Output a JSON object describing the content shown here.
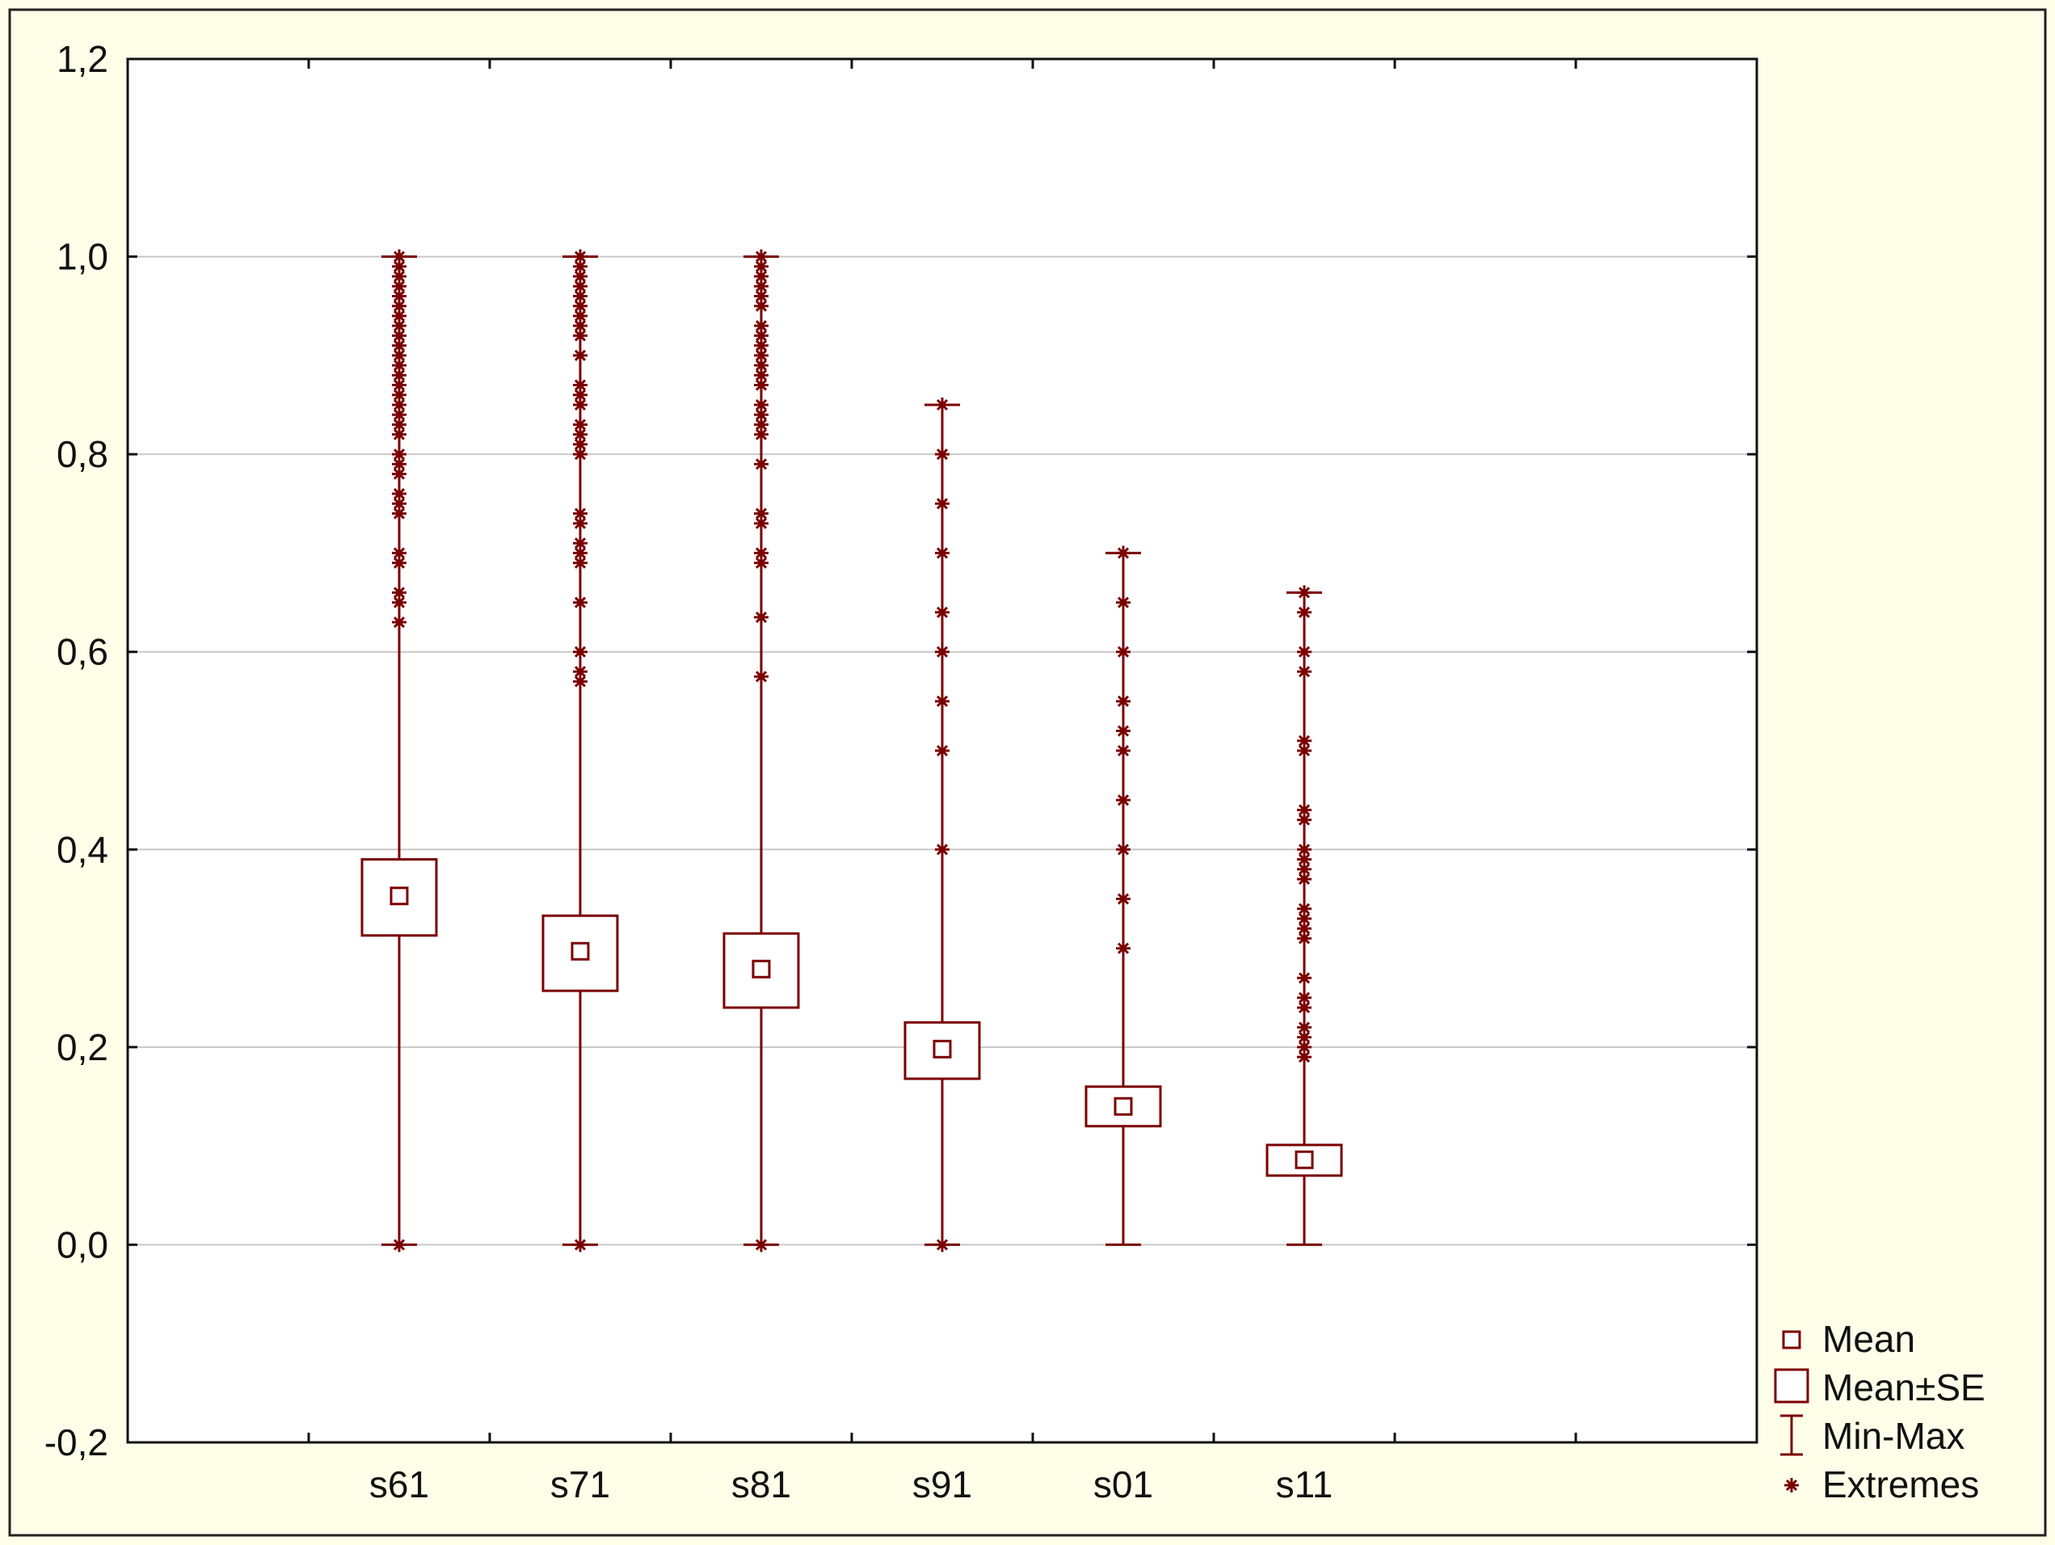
{
  "chart_data": {
    "type": "box",
    "title": "",
    "xlabel": "",
    "ylabel": "",
    "ylim": [
      -0.2,
      1.2
    ],
    "y_ticks": [
      "-0,2",
      "0,0",
      "0,2",
      "0,4",
      "0,6",
      "0,8",
      "1,0",
      "1,2"
    ],
    "y_tick_values": [
      -0.2,
      0.0,
      0.2,
      0.4,
      0.6,
      0.8,
      1.0,
      1.2
    ],
    "grid": "horizontal",
    "legend_position": "right-bottom",
    "legend": {
      "mean": "Mean",
      "mean_se": "Mean±SE",
      "min_max": "Min-Max",
      "extremes": "Extremes"
    },
    "colors": {
      "series": "#7b0000",
      "grid": "#c8c8c8",
      "plot_background": "#ffffff",
      "page_background": "#fefee9"
    },
    "categories": [
      "s61",
      "s71",
      "s81",
      "s91",
      "s01",
      "s11"
    ],
    "series": [
      {
        "category": "s61",
        "mean": 0.353,
        "se_low": 0.313,
        "se_high": 0.39,
        "min": 0.0,
        "max": 1.0,
        "extremes": [
          0.0,
          0.63,
          0.65,
          0.66,
          0.69,
          0.7,
          0.74,
          0.75,
          0.76,
          0.78,
          0.79,
          0.8,
          0.82,
          0.83,
          0.84,
          0.85,
          0.86,
          0.87,
          0.88,
          0.89,
          0.9,
          0.91,
          0.92,
          0.93,
          0.94,
          0.95,
          0.96,
          0.97,
          0.98,
          0.99,
          1.0
        ]
      },
      {
        "category": "s71",
        "mean": 0.297,
        "se_low": 0.257,
        "se_high": 0.333,
        "min": 0.0,
        "max": 1.0,
        "extremes": [
          0.0,
          0.57,
          0.58,
          0.6,
          0.65,
          0.69,
          0.7,
          0.71,
          0.73,
          0.74,
          0.8,
          0.81,
          0.82,
          0.83,
          0.85,
          0.86,
          0.87,
          0.9,
          0.92,
          0.93,
          0.94,
          0.95,
          0.96,
          0.97,
          0.98,
          0.99,
          1.0
        ]
      },
      {
        "category": "s81",
        "mean": 0.279,
        "se_low": 0.24,
        "se_high": 0.315,
        "min": 0.0,
        "max": 1.0,
        "extremes": [
          0.0,
          0.575,
          0.635,
          0.69,
          0.7,
          0.73,
          0.74,
          0.79,
          0.82,
          0.83,
          0.84,
          0.85,
          0.87,
          0.88,
          0.89,
          0.9,
          0.91,
          0.92,
          0.93,
          0.95,
          0.96,
          0.97,
          0.98,
          0.99,
          1.0
        ]
      },
      {
        "category": "s91",
        "mean": 0.198,
        "se_low": 0.168,
        "se_high": 0.225,
        "min": 0.0,
        "max": 0.85,
        "extremes": [
          0.0,
          0.4,
          0.5,
          0.55,
          0.6,
          0.64,
          0.7,
          0.75,
          0.8,
          0.85
        ]
      },
      {
        "category": "s01",
        "mean": 0.14,
        "se_low": 0.12,
        "se_high": 0.16,
        "min": 0.0,
        "max": 0.7,
        "extremes": [
          0.3,
          0.35,
          0.4,
          0.45,
          0.5,
          0.52,
          0.55,
          0.6,
          0.65,
          0.7
        ]
      },
      {
        "category": "s11",
        "mean": 0.086,
        "se_low": 0.07,
        "se_high": 0.101,
        "min": 0.0,
        "max": 0.66,
        "extremes": [
          0.19,
          0.2,
          0.21,
          0.22,
          0.24,
          0.25,
          0.27,
          0.31,
          0.32,
          0.33,
          0.34,
          0.37,
          0.38,
          0.39,
          0.4,
          0.43,
          0.44,
          0.5,
          0.51,
          0.58,
          0.6,
          0.64,
          0.66
        ]
      }
    ]
  }
}
